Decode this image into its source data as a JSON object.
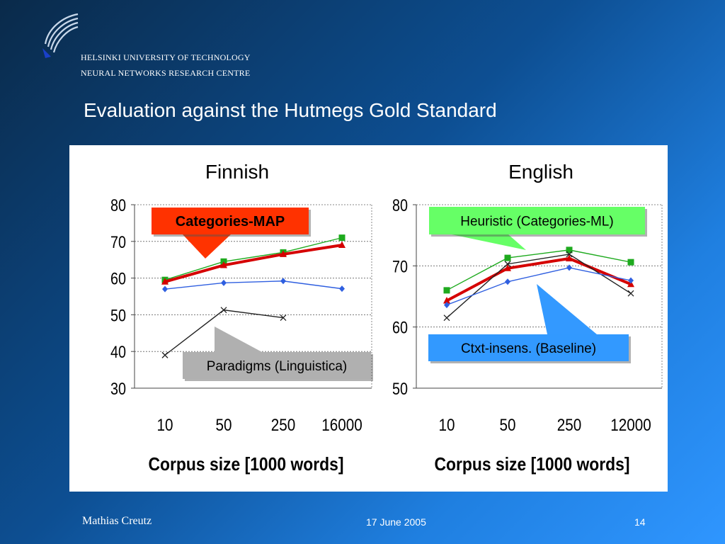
{
  "header": {
    "institution_line1": "HELSINKI UNIVERSITY OF TECHNOLOGY",
    "institution_line2": "NEURAL NETWORKS RESEARCH CENTRE",
    "slide_title": "Evaluation against the Hutmegs Gold Standard"
  },
  "footer": {
    "author": "Mathias Creutz",
    "date": "17 June 2005",
    "page_number": "14"
  },
  "colors": {
    "background_dark": "#0a2a4a",
    "background_light": "#2f96ff",
    "categories_map": "#d50000",
    "categories_map_callout": "#ff3300",
    "heuristic": "#1eaa1e",
    "heuristic_callout": "#66ff66",
    "baseline": "#2f5fe0",
    "baseline_callout": "#3399ff",
    "linguistica": "#222222",
    "linguistica_callout": "#b0b0b0",
    "square_marker": "#1eaa1e"
  },
  "chart_data": [
    {
      "type": "line",
      "title": "Finnish",
      "xlabel": "Corpus size [1000 words]",
      "ylabel": "",
      "categories": [
        "10",
        "50",
        "250",
        "16000"
      ],
      "ylim": [
        30,
        80
      ],
      "yticks": [
        30,
        40,
        50,
        60,
        70,
        80
      ],
      "grid": true,
      "series": [
        {
          "name": "",
          "color": "#1eaa1e",
          "marker": "square",
          "values": [
            59.5,
            64.5,
            67,
            71
          ]
        },
        {
          "name": "Categories-MAP",
          "color": "#d50000",
          "marker": "triangle",
          "thick": true,
          "values": [
            59,
            63.5,
            66.5,
            69
          ]
        },
        {
          "name": "",
          "color": "#2f5fe0",
          "marker": "diamond",
          "values": [
            57,
            58.7,
            59.2,
            57.1
          ]
        },
        {
          "name": "Paradigms (Linguistica)",
          "color": "#222222",
          "marker": "x",
          "values": [
            39,
            51.3,
            49.2,
            null
          ]
        }
      ],
      "annotations": [
        {
          "text": "Categories-MAP",
          "style": "red-callout"
        },
        {
          "text": "Paradigms (Linguistica)",
          "style": "gray-callout"
        }
      ]
    },
    {
      "type": "line",
      "title": "English",
      "xlabel": "Corpus size [1000 words]",
      "ylabel": "",
      "categories": [
        "10",
        "50",
        "250",
        "12000"
      ],
      "ylim": [
        50,
        80
      ],
      "yticks": [
        50,
        60,
        70,
        80
      ],
      "grid": true,
      "series": [
        {
          "name": "Heuristic (Categories-ML)",
          "color": "#1eaa1e",
          "marker": "square",
          "values": [
            66,
            71.3,
            72.6,
            70.6
          ]
        },
        {
          "name": "",
          "color": "#d50000",
          "marker": "triangle",
          "thick": true,
          "values": [
            64.3,
            69.6,
            71.2,
            67
          ]
        },
        {
          "name": "",
          "color": "#222222",
          "marker": "x",
          "values": [
            61.5,
            70.3,
            71.9,
            65.5
          ]
        },
        {
          "name": "Ctxt-insens. (Baseline)",
          "color": "#2f5fe0",
          "marker": "diamond",
          "values": [
            63.6,
            67.4,
            69.7,
            67.6
          ]
        }
      ],
      "annotations": [
        {
          "text": "Heuristic (Categories-ML)",
          "style": "green-callout"
        },
        {
          "text": "Ctxt-insens. (Baseline)",
          "style": "blue-callout"
        }
      ]
    }
  ]
}
